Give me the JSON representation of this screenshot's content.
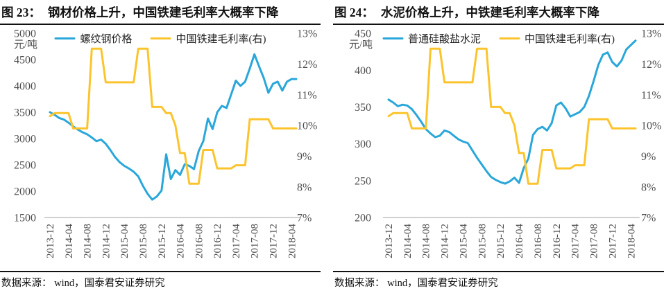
{
  "colors": {
    "price_line": "#29A7DA",
    "margin_line": "#FCC42C",
    "axis_text": "#4D4D4D",
    "axis_line": "#B3B3B3",
    "title_text": "#111111",
    "source_text": "#111111",
    "background": "#FFFFFF"
  },
  "chart_data": [
    {
      "type": "line",
      "figure_label": "图 23：",
      "title": "钢材价格上升，中国铁建毛利率大概率下降",
      "source": "数据来源： wind，国泰君安证券研究",
      "x_start": "2013-12",
      "x_interval": "monthly",
      "x_tick_labels": [
        "2013-12",
        "2014-04",
        "2014-08",
        "2014-12",
        "2015-04",
        "2015-08",
        "2015-12",
        "2016-04",
        "2016-08",
        "2016-12",
        "2017-04",
        "2017-08",
        "2017-12",
        "2018-04"
      ],
      "left_axis": {
        "title": "元/吨",
        "max": 5000,
        "min": 1500,
        "ticks": [
          "5000",
          "4500",
          "4000",
          "3500",
          "3000",
          "2500",
          "2000",
          "1500"
        ]
      },
      "right_axis": {
        "max": 13,
        "min": 7,
        "ticks": [
          "13%",
          "12%",
          "11%",
          "10%",
          "9%",
          "8%",
          "7%"
        ]
      },
      "legend_position": "top",
      "grid": false,
      "series": [
        {
          "name": "螺纹钢价格",
          "axis": "left",
          "color": "price_line",
          "values": [
            3500,
            3450,
            3390,
            3360,
            3300,
            3230,
            3170,
            3120,
            3080,
            3020,
            2950,
            2980,
            2900,
            2780,
            2650,
            2550,
            2480,
            2430,
            2370,
            2280,
            2100,
            1950,
            1840,
            1900,
            2010,
            2700,
            2230,
            2400,
            2310,
            2510,
            2480,
            2420,
            2760,
            2950,
            3380,
            3180,
            3500,
            3620,
            3580,
            3840,
            4100,
            4000,
            4080,
            4330,
            4600,
            4370,
            4150,
            3870,
            4040,
            4080,
            3910,
            4080,
            4130,
            4130
          ]
        },
        {
          "name": "中国铁建毛利率(右)",
          "axis": "right",
          "color": "margin_line",
          "values": [
            10.3,
            10.4,
            10.4,
            10.4,
            10.4,
            9.9,
            9.9,
            9.9,
            9.9,
            12.5,
            12.5,
            12.5,
            11.4,
            11.4,
            11.4,
            11.4,
            11.4,
            11.4,
            11.4,
            12.5,
            12.5,
            12.5,
            10.6,
            10.6,
            10.6,
            10.4,
            10.4,
            10.0,
            9.1,
            9.1,
            8.1,
            8.1,
            8.1,
            9.2,
            9.2,
            9.2,
            8.6,
            8.6,
            8.6,
            8.6,
            8.7,
            8.7,
            8.7,
            10.2,
            10.2,
            10.2,
            10.2,
            10.2,
            9.9,
            9.9,
            9.9,
            9.9,
            9.9,
            9.9
          ]
        }
      ]
    },
    {
      "type": "line",
      "figure_label": "图 24：",
      "title": "水泥价格上升，中铁建毛利率大概率下降",
      "source": "数据来源： wind，国泰君安证券研究",
      "x_start": "2013-12",
      "x_interval": "monthly",
      "x_tick_labels": [
        "2013-12",
        "2014-04",
        "2014-08",
        "2014-12",
        "2015-04",
        "2015-08",
        "2015-12",
        "2016-04",
        "2016-08",
        "2016-12",
        "2017-04",
        "2017-08",
        "2017-12",
        "2018-04"
      ],
      "left_axis": {
        "title": "元/吨",
        "max": 450,
        "min": 200,
        "ticks": [
          "450",
          "400",
          "350",
          "300",
          "250",
          "200"
        ]
      },
      "right_axis": {
        "max": 13,
        "min": 7,
        "ticks": [
          "13%",
          "12%",
          "11%",
          "10%",
          "9%",
          "8%",
          "7%"
        ]
      },
      "legend_position": "top",
      "grid": false,
      "series": [
        {
          "name": "普通硅酸盐水泥",
          "axis": "left",
          "color": "price_line",
          "values": [
            360,
            356,
            351,
            353,
            352,
            347,
            339,
            330,
            320,
            314,
            309,
            311,
            318,
            316,
            311,
            306,
            303,
            301,
            291,
            281,
            272,
            263,
            255,
            251,
            248,
            246,
            249,
            254,
            247,
            267,
            280,
            312,
            320,
            323,
            318,
            328,
            352,
            356,
            348,
            337,
            340,
            343,
            350,
            365,
            385,
            407,
            421,
            424,
            411,
            405,
            413,
            428,
            434,
            440
          ]
        },
        {
          "name": "中国铁建毛利率(右)",
          "axis": "right",
          "color": "margin_line",
          "values": [
            10.3,
            10.4,
            10.4,
            10.4,
            10.4,
            9.9,
            9.9,
            9.9,
            9.9,
            12.5,
            12.5,
            12.5,
            11.4,
            11.4,
            11.4,
            11.4,
            11.4,
            11.4,
            11.4,
            12.5,
            12.5,
            12.5,
            10.6,
            10.6,
            10.6,
            10.4,
            10.4,
            10.0,
            9.1,
            9.1,
            8.1,
            8.1,
            8.1,
            9.2,
            9.2,
            9.2,
            8.6,
            8.6,
            8.6,
            8.6,
            8.7,
            8.7,
            8.7,
            10.2,
            10.2,
            10.2,
            10.2,
            10.2,
            9.9,
            9.9,
            9.9,
            9.9,
            9.9,
            9.9
          ]
        }
      ]
    }
  ]
}
